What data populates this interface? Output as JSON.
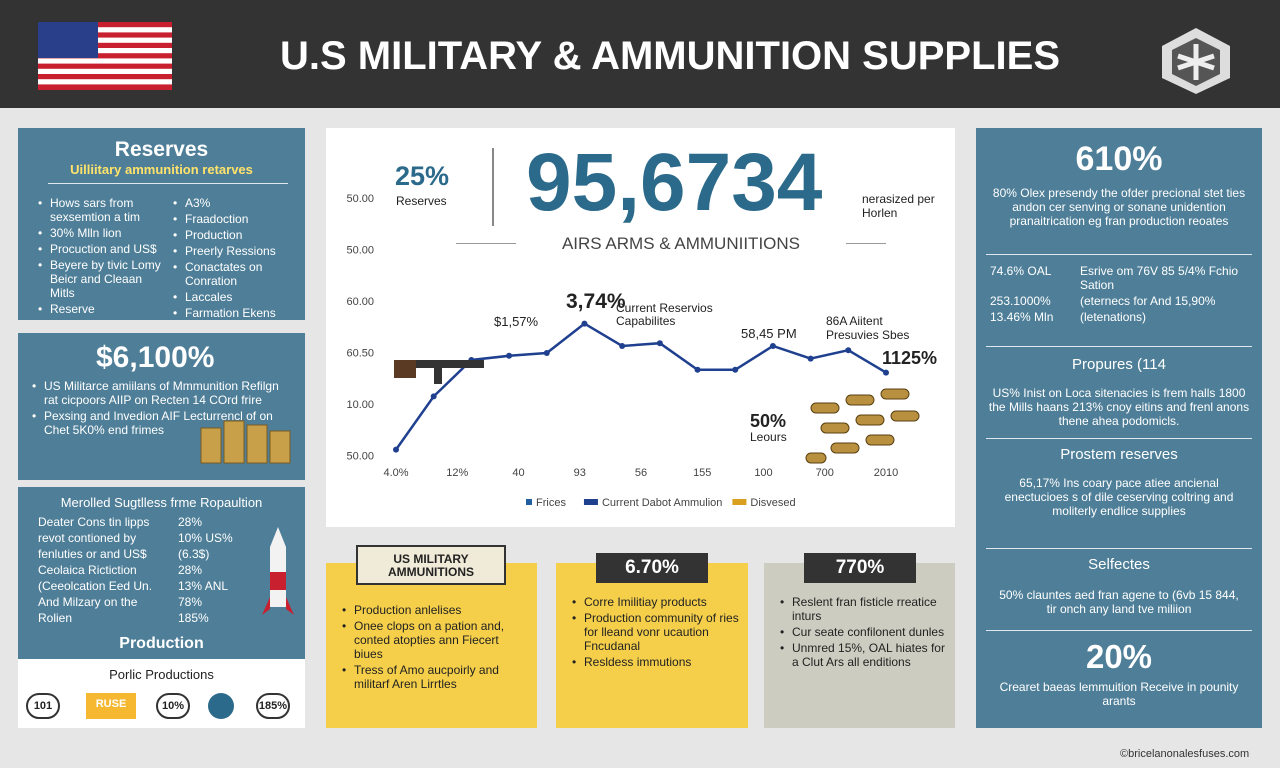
{
  "header": {
    "title": "U.S MILITARY  & AMMUNITION SUPPLIES"
  },
  "reserves": {
    "title": "Reserves",
    "subtitle": "Uilliitary ammunition retarves",
    "left": [
      "Hows sars from sexsemtion a tim",
      "30% Mlln lion",
      "Procuction and US$",
      "Beyere by tivic Lomy Beicr and Cleaan Mitls",
      "Reserve"
    ],
    "right": [
      "A3%",
      "Fraadoction",
      "Production",
      "Preerly Ressions",
      "Conactates on Conration",
      "Laccales",
      "Farmation Ekens"
    ]
  },
  "panel2": {
    "big": "$6,100%",
    "items": [
      "US Militarce amiilans of Mmmunition Refilgn rat cicpoors AIIP on Recten 14 COrd frire",
      "Pexsing and Invedion AIF Lecturrencl of on Chet 5K0% end frimes"
    ]
  },
  "panel3": {
    "heading": "Merolled Sugtlless frme Ropaultion",
    "rows": [
      [
        "Deater Cons tin lipps",
        "28%"
      ],
      [
        "revot contioned by",
        "10% US%"
      ],
      [
        "fenluties or and US$",
        "(6.3$)"
      ],
      [
        "Ceolaica Rictiction",
        "28%"
      ],
      [
        "(Ceeolcation Eed Un.",
        "13% ANL"
      ],
      [
        "And Milzary on the",
        "78%"
      ],
      [
        "Rolien",
        "185%"
      ]
    ],
    "production": "Production",
    "sub": "Porlic Productions",
    "chips": [
      "101",
      "RUSE",
      "10%",
      "185%"
    ]
  },
  "center": {
    "pct": "25%",
    "pct_label": "Reserves",
    "big": "95,6734",
    "big_note": "nerasized per Horlen",
    "subtitle": "AIRS ARMS & AMMUNIITIONS",
    "ann1": "3,74%",
    "ann1_label": "Current Reservios Capabilites",
    "ann2": "$1,57%",
    "ann3": "58,45 PM",
    "ann4": "86A Aiitent Presuvies Sbes",
    "ann5": "1125%",
    "ann6": "50%",
    "ann6_label": "Leours"
  },
  "chart_data": {
    "type": "line",
    "color": "#1f3f8f",
    "values": [
      6,
      44,
      70,
      73,
      75,
      96,
      80,
      82,
      63,
      63,
      80,
      71,
      77,
      61
    ],
    "ylim": [
      0,
      100
    ],
    "y_axis_labels": [
      "50.00",
      "50.00",
      "60.00",
      "60.50",
      "10.00",
      "50.00"
    ],
    "x_axis_labels": [
      "4.0%",
      "12%",
      "40",
      "93",
      "56",
      "155",
      "100",
      "700",
      "2010"
    ],
    "legend": [
      {
        "name": "Frices",
        "color": "#1f5f9f"
      },
      {
        "name": "Current Dabot Ammulion",
        "color": "#1f3f8f"
      },
      {
        "name": "Disvesed",
        "color": "#d9a020"
      }
    ]
  },
  "box1": {
    "banner": "US MILITARY AMMUNITIONS",
    "items": [
      "Production anlelises",
      "Onee clops on a pation and, conted atopties ann Fiecert biues",
      "Tress of Amo aucpoirly and militarf Aren Lirrtles"
    ]
  },
  "box2": {
    "label": "6.70%",
    "items": [
      "Corre Imilitiay products",
      "Production community of ries for lleand vonr ucaution Fncudanal",
      "Resldess immutions"
    ]
  },
  "box3": {
    "label": "770%",
    "items": [
      "Reslent fran fisticle rreatice inturs",
      "Cur seate confilonent dunles",
      "Unmred 15%, OAL hiates for a Clut Ars all enditions"
    ]
  },
  "right": {
    "big": "610%",
    "para": "80% Olex presendy the ofder precional stet ties andon cer senving or sonane unidention pranaitrication eg fran production reoates",
    "rows": [
      [
        "74.6% OAL",
        "Esrive om 76V 85 5/4% Fchio Sation"
      ],
      [
        "253.1000%",
        "(eternecs for And 15,90%"
      ],
      [
        "13.46% Mln",
        "(letenations)"
      ]
    ],
    "h1": "Propures (114",
    "p1": "US% Inist on Loca sitenacies is frem halls 1800 the Mills haans 213% cnoy eitins and frenl anons thene ahea podomicls.",
    "h2": "Prostem reserves",
    "p2": "65,17% Ins coary pace atiee ancienal enectucioes s of dile ceserving coltring and moliterly endlice supplies",
    "h3": "Selfectes",
    "p3": "50% clauntes aed fran agene to (6vb 15 844, tir onch any land tve miliion",
    "big2": "20%",
    "p4": "Crearet baeas lemmuition Receive in pounity arants"
  },
  "footer": {
    "credit": "©bricelanonalesfuses.com"
  }
}
